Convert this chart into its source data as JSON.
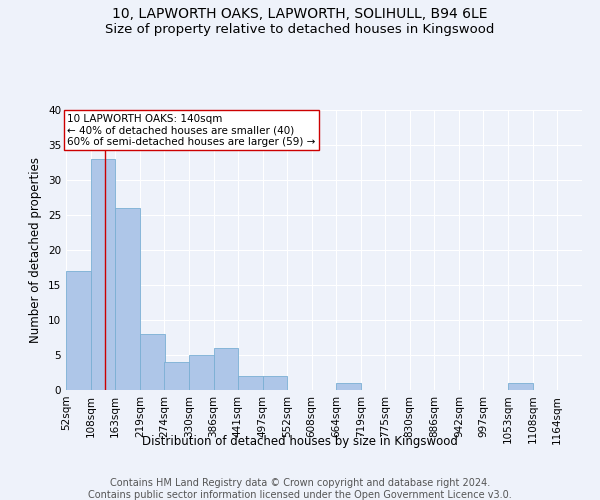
{
  "title1": "10, LAPWORTH OAKS, LAPWORTH, SOLIHULL, B94 6LE",
  "title2": "Size of property relative to detached houses in Kingswood",
  "xlabel": "Distribution of detached houses by size in Kingswood",
  "ylabel": "Number of detached properties",
  "bin_edges": [
    52,
    108,
    163,
    219,
    274,
    330,
    386,
    441,
    497,
    552,
    608,
    664,
    719,
    775,
    830,
    886,
    942,
    997,
    1053,
    1108,
    1164
  ],
  "bar_heights": [
    17,
    33,
    26,
    8,
    4,
    5,
    6,
    2,
    2,
    0,
    0,
    1,
    0,
    0,
    0,
    0,
    0,
    0,
    1,
    0,
    0
  ],
  "bar_color": "#aec6e8",
  "bar_edgecolor": "#7aafd4",
  "property_size": 140,
  "vline_color": "#cc0000",
  "annotation_text": "10 LAPWORTH OAKS: 140sqm\n← 40% of detached houses are smaller (40)\n60% of semi-detached houses are larger (59) →",
  "annotation_box_color": "#ffffff",
  "annotation_box_edgecolor": "#cc0000",
  "ylim": [
    0,
    40
  ],
  "yticks": [
    0,
    5,
    10,
    15,
    20,
    25,
    30,
    35,
    40
  ],
  "footer1": "Contains HM Land Registry data © Crown copyright and database right 2024.",
  "footer2": "Contains public sector information licensed under the Open Government Licence v3.0.",
  "background_color": "#eef2fa",
  "grid_color": "#ffffff",
  "title_fontsize": 10,
  "subtitle_fontsize": 9.5,
  "axis_label_fontsize": 8.5,
  "tick_fontsize": 7.5,
  "footer_fontsize": 7,
  "annotation_fontsize": 7.5
}
